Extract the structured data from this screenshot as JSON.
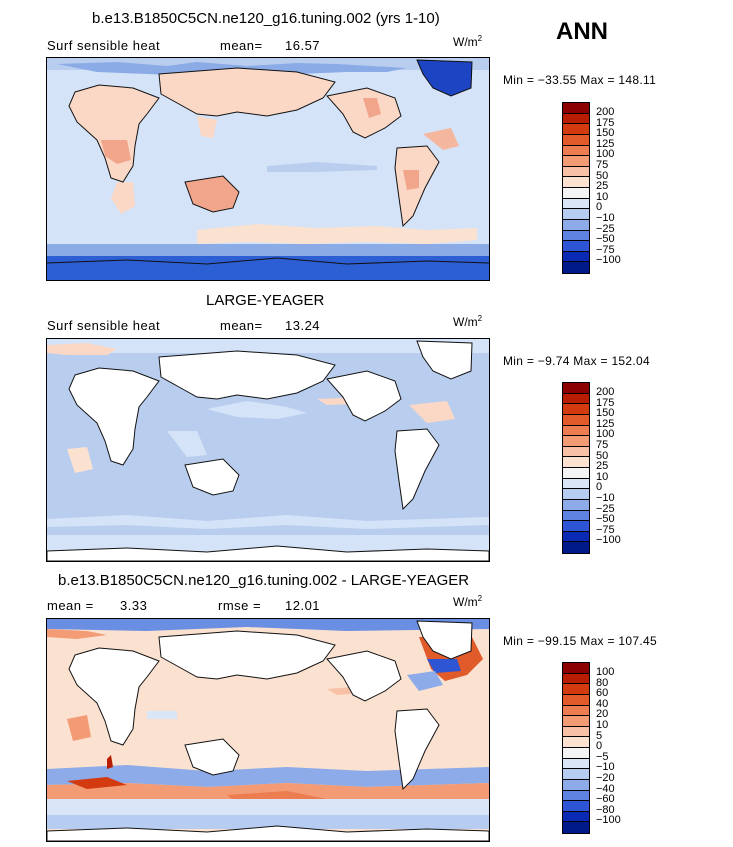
{
  "season": "ANN",
  "units": {
    "base": "W/m",
    "exp": "2"
  },
  "panels": [
    {
      "title": "b.e13.B1850C5CN.ne120_g16.tuning.002 (yrs 1-10)",
      "variable": "Surf sensible heat",
      "mean_label": "mean=",
      "mean_value": "16.57",
      "minmax": "Min = −33.55 Max = 148.11",
      "levels": [
        "200",
        "175",
        "150",
        "125",
        "100",
        "75",
        "50",
        "25",
        "10",
        "0",
        "−10",
        "−25",
        "−50",
        "−75",
        "−100"
      ]
    },
    {
      "title": "LARGE-YEAGER",
      "variable": "Surf sensible heat",
      "mean_label": "mean=",
      "mean_value": "13.24",
      "minmax": "Min =  −9.74 Max = 152.04",
      "levels": [
        "200",
        "175",
        "150",
        "125",
        "100",
        "75",
        "50",
        "25",
        "10",
        "0",
        "−10",
        "−25",
        "−50",
        "−75",
        "−100"
      ]
    },
    {
      "title": "b.e13.B1850C5CN.ne120_g16.tuning.002 - LARGE-YEAGER",
      "mean_label": "mean =",
      "mean_value": "3.33",
      "rmse_label": "rmse =",
      "rmse_value": "12.01",
      "minmax": "Min = −99.15 Max = 107.45",
      "levels": [
        "100",
        "80",
        "60",
        "40",
        "20",
        "10",
        "5",
        "0",
        "−5",
        "−10",
        "−20",
        "−40",
        "−60",
        "−80",
        "−100"
      ]
    }
  ],
  "colorbar_colors": [
    "#8b0000",
    "#b81d00",
    "#d43a10",
    "#e05a2a",
    "#ec7d50",
    "#f39b75",
    "#f8c0a5",
    "#fbe1d0",
    "#f5f5f5",
    "#d8e6f8",
    "#b6ccf0",
    "#8cabe8",
    "#5d82e0",
    "#2d55d4",
    "#0a2ab3",
    "#001a8a"
  ]
}
